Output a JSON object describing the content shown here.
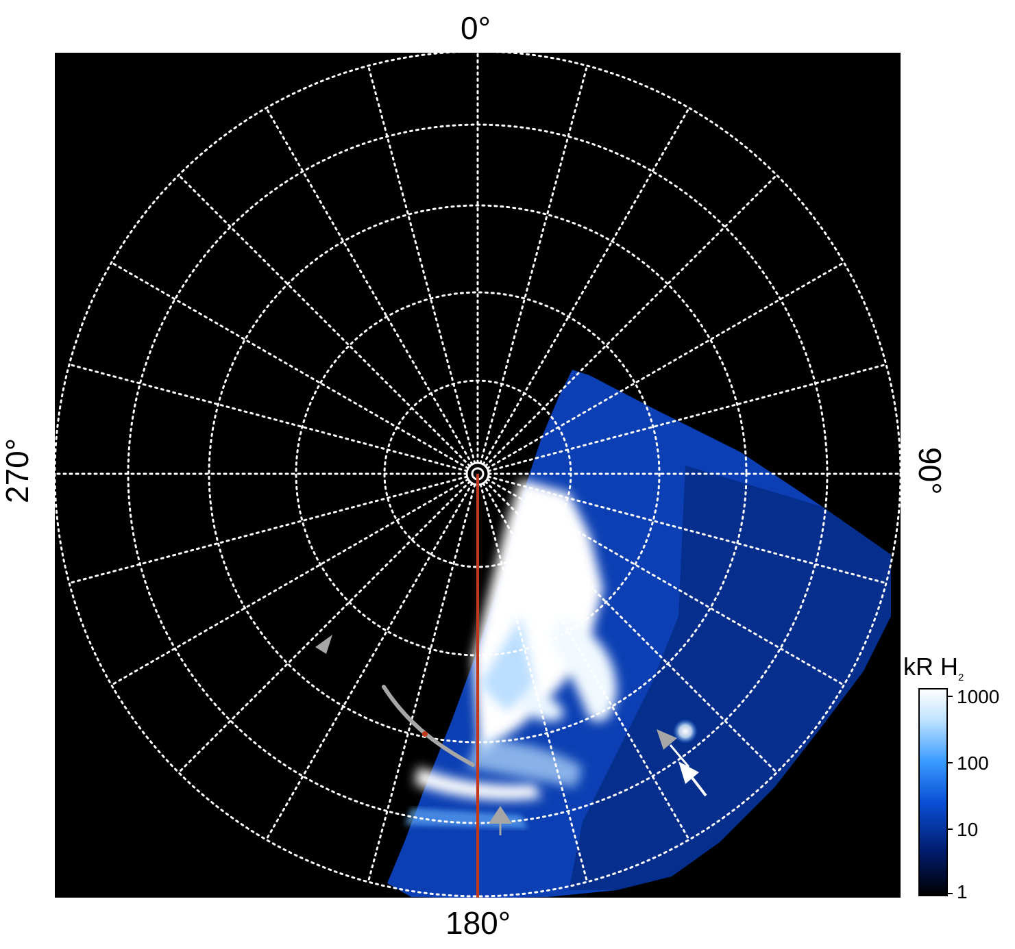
{
  "axis_labels": {
    "top": "0°",
    "right": "90°",
    "bottom": "180°",
    "left": "270°"
  },
  "colorbar": {
    "unit": "kR",
    "species": "H",
    "species_subscript": "2",
    "scale": "log",
    "ticks": [
      "1000",
      "100",
      "10",
      "1"
    ],
    "colors": [
      "#000000",
      "#001a66",
      "#0a4fd6",
      "#3a9bff",
      "#bfe3ff",
      "#ffffff"
    ]
  },
  "grid": {
    "rings": 5,
    "meridian_spacing_deg": 15,
    "line_color": "#ffffff"
  },
  "colors": {
    "background": "#000000",
    "meridian_line": "#c0391b",
    "annotation_gray": "#a6a6a6",
    "annotation_white": "#ffffff"
  }
}
